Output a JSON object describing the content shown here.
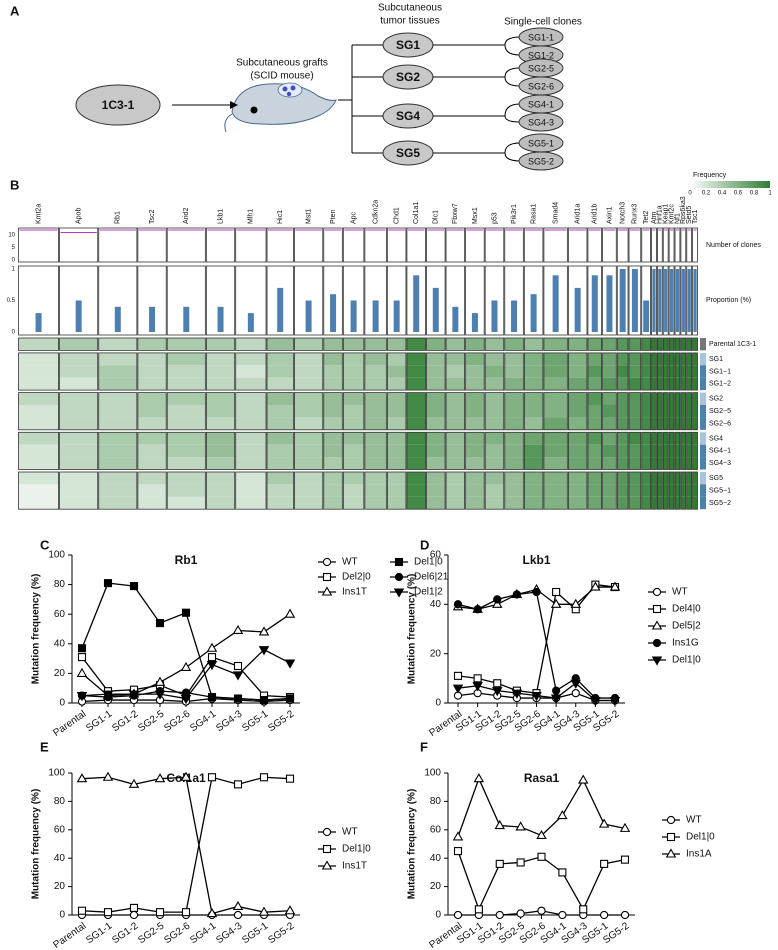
{
  "panel_labels": [
    "A",
    "B",
    "C",
    "D",
    "E",
    "F"
  ],
  "diagram": {
    "parent": "1C3-1",
    "graft_label": [
      "Subcutaneous grafts",
      "(SCID mouse)"
    ],
    "tumor_header": [
      "Subcutaneous",
      "tumor tissues"
    ],
    "clones_header": "Single-cell clones",
    "tumors": [
      {
        "label": "SG1",
        "clones": [
          "SG1-1",
          "SG1-2"
        ]
      },
      {
        "label": "SG2",
        "clones": [
          "SG2-5",
          "SG2-6"
        ]
      },
      {
        "label": "SG4",
        "clones": [
          "SG4-1",
          "SG4-3"
        ]
      },
      {
        "label": "SG5",
        "clones": [
          "SG5-1",
          "SG5-2"
        ]
      }
    ]
  },
  "heatmap": {
    "legend_title": "Frequency",
    "legend_ticks": [
      0,
      0.2,
      0.4,
      0.6,
      0.8,
      1
    ],
    "low_color": "#ffffff",
    "high_color": "#2e7d32",
    "clones_label": "Number of clones",
    "proportion_label": "Proportion (%)",
    "clones_ylim": [
      0,
      12
    ],
    "clones_yticks": [
      0,
      5,
      10
    ],
    "proportion_ylim": [
      0,
      1
    ],
    "proportion_yticks": [
      0,
      0.5,
      1
    ],
    "genes": [
      "Kmt2a",
      "Apob",
      "Rb1",
      "Tsc2",
      "Arid2",
      "Lkb1",
      "Mlh1",
      "Hic1",
      "Mst1",
      "Pten",
      "Apc",
      "Cdkn2a",
      "Chd1",
      "Col1a1",
      "Dlc1",
      "Fbxw7",
      "Msx1",
      "p53",
      "Pik3r1",
      "Rasa1",
      "Smad4",
      "Arid1a",
      "Arid1b",
      "Axin1",
      "Notch3",
      "Runx3",
      "Tet2",
      "Atm",
      "Hnf1a",
      "Keap1",
      "Kmt2c",
      "Nf1",
      "Rps6ka3",
      "Setd5",
      "Tsc1"
    ],
    "clones": [
      12,
      11,
      12,
      12,
      12,
      12,
      12,
      12,
      12,
      12,
      12,
      12,
      12,
      12,
      12,
      12,
      12,
      12,
      12,
      12,
      12,
      12,
      12,
      12,
      12,
      12,
      12,
      12,
      12,
      12,
      12,
      12,
      12,
      12,
      12
    ],
    "proportion": [
      0.3,
      0.5,
      0.4,
      0.4,
      0.4,
      0.4,
      0.3,
      0.7,
      0.5,
      0.6,
      0.5,
      0.5,
      0.5,
      0.9,
      0.7,
      0.4,
      0.3,
      0.5,
      0.5,
      0.6,
      0.9,
      0.7,
      0.9,
      0.9,
      1,
      1,
      0.5,
      1,
      1,
      1,
      1,
      1,
      1,
      1,
      1
    ],
    "row_labels": [
      "Parental 1C3-1",
      "SG1",
      "SG1−1",
      "SG1−2",
      "SG2",
      "SG2−5",
      "SG2−6",
      "SG4",
      "SG4−1",
      "SG4−3",
      "SG5",
      "SG5−1",
      "SG5−2"
    ],
    "values": [
      [
        0.3,
        0.4,
        0.3,
        0.4,
        0.4,
        0.4,
        0.3,
        0.5,
        0.4,
        0.5,
        0.5,
        0.5,
        0.5,
        0.9,
        0.6,
        0.5,
        0.6,
        0.5,
        0.6,
        0.5,
        0.6,
        0.6,
        0.7,
        0.7,
        0.8,
        0.8,
        0.9,
        1,
        1,
        1,
        1,
        1,
        1,
        1,
        1
      ],
      [
        0.2,
        0.3,
        0.3,
        0.3,
        0.4,
        0.3,
        0.3,
        0.4,
        0.3,
        0.5,
        0.4,
        0.5,
        0.4,
        0.9,
        0.5,
        0.5,
        0.6,
        0.5,
        0.5,
        0.6,
        0.7,
        0.6,
        0.7,
        0.7,
        0.8,
        0.8,
        0.9,
        1,
        1,
        1,
        1,
        1,
        1,
        1,
        1
      ],
      [
        0.2,
        0.3,
        0.4,
        0.3,
        0.3,
        0.3,
        0.2,
        0.4,
        0.3,
        0.4,
        0.4,
        0.4,
        0.5,
        0.9,
        0.5,
        0.4,
        0.5,
        0.6,
        0.5,
        0.6,
        0.7,
        0.6,
        0.8,
        0.7,
        0.9,
        0.8,
        0.9,
        1,
        1,
        1,
        1,
        1,
        1,
        1,
        1
      ],
      [
        0.2,
        0.2,
        0.4,
        0.3,
        0.3,
        0.3,
        0.3,
        0.3,
        0.3,
        0.4,
        0.4,
        0.4,
        0.4,
        0.9,
        0.5,
        0.5,
        0.5,
        0.5,
        0.6,
        0.6,
        0.6,
        0.7,
        0.7,
        0.8,
        0.8,
        0.9,
        0.9,
        1,
        1,
        1,
        1,
        1,
        1,
        1,
        1
      ],
      [
        0.3,
        0.3,
        0.3,
        0.4,
        0.4,
        0.4,
        0.3,
        0.5,
        0.4,
        0.5,
        0.5,
        0.5,
        0.5,
        0.9,
        0.6,
        0.5,
        0.6,
        0.5,
        0.6,
        0.6,
        0.6,
        0.7,
        0.8,
        0.7,
        0.8,
        0.8,
        0.9,
        1,
        1,
        1,
        1,
        1,
        1,
        1,
        1
      ],
      [
        0.2,
        0.3,
        0.3,
        0.4,
        0.3,
        0.4,
        0.3,
        0.4,
        0.4,
        0.5,
        0.4,
        0.5,
        0.5,
        0.9,
        0.6,
        0.5,
        0.6,
        0.5,
        0.6,
        0.6,
        0.6,
        0.7,
        0.7,
        0.8,
        0.8,
        0.8,
        0.9,
        1,
        1,
        1,
        1,
        1,
        1,
        1,
        1
      ],
      [
        0.2,
        0.3,
        0.3,
        0.3,
        0.3,
        0.3,
        0.3,
        0.4,
        0.3,
        0.4,
        0.4,
        0.5,
        0.4,
        0.9,
        0.5,
        0.5,
        0.5,
        0.5,
        0.6,
        0.5,
        0.7,
        0.6,
        0.7,
        0.7,
        0.8,
        0.8,
        0.9,
        1,
        1,
        1,
        1,
        1,
        1,
        1,
        1
      ],
      [
        0.3,
        0.3,
        0.4,
        0.4,
        0.4,
        0.5,
        0.3,
        0.5,
        0.4,
        0.5,
        0.5,
        0.5,
        0.5,
        0.9,
        0.6,
        0.5,
        0.6,
        0.6,
        0.6,
        0.7,
        0.7,
        0.7,
        0.8,
        0.7,
        0.8,
        0.9,
        0.9,
        1,
        1,
        1,
        1,
        1,
        1,
        1,
        1
      ],
      [
        0.2,
        0.3,
        0.4,
        0.3,
        0.4,
        0.5,
        0.3,
        0.4,
        0.4,
        0.5,
        0.4,
        0.5,
        0.5,
        0.9,
        0.6,
        0.5,
        0.6,
        0.5,
        0.6,
        0.8,
        0.7,
        0.7,
        0.7,
        0.8,
        0.8,
        0.8,
        0.9,
        1,
        1,
        1,
        1,
        1,
        1,
        1,
        1
      ],
      [
        0.2,
        0.3,
        0.4,
        0.3,
        0.3,
        0.4,
        0.3,
        0.4,
        0.4,
        0.4,
        0.4,
        0.5,
        0.5,
        0.9,
        0.5,
        0.5,
        0.5,
        0.5,
        0.6,
        0.8,
        0.6,
        0.7,
        0.7,
        0.7,
        0.8,
        0.8,
        0.9,
        1,
        1,
        1,
        1,
        1,
        1,
        1,
        1
      ],
      [
        0.2,
        0.2,
        0.3,
        0.3,
        0.3,
        0.3,
        0.2,
        0.4,
        0.3,
        0.4,
        0.4,
        0.4,
        0.4,
        0.9,
        0.5,
        0.4,
        0.5,
        0.5,
        0.5,
        0.6,
        0.6,
        0.6,
        0.7,
        0.7,
        0.8,
        0.8,
        0.9,
        1,
        1,
        1,
        1,
        1,
        1,
        1,
        1
      ],
      [
        0.1,
        0.2,
        0.3,
        0.2,
        0.3,
        0.3,
        0.2,
        0.3,
        0.3,
        0.4,
        0.3,
        0.4,
        0.4,
        0.9,
        0.5,
        0.4,
        0.5,
        0.4,
        0.5,
        0.6,
        0.6,
        0.6,
        0.7,
        0.7,
        0.8,
        0.8,
        0.9,
        1,
        1,
        1,
        1,
        1,
        1,
        1,
        1
      ],
      [
        0.1,
        0.2,
        0.3,
        0.2,
        0.2,
        0.3,
        0.2,
        0.3,
        0.3,
        0.4,
        0.3,
        0.4,
        0.4,
        0.9,
        0.5,
        0.4,
        0.5,
        0.4,
        0.5,
        0.6,
        0.6,
        0.6,
        0.7,
        0.7,
        0.8,
        0.8,
        0.9,
        1,
        1,
        1,
        1,
        1,
        1,
        1,
        1
      ]
    ]
  },
  "chart_data": [
    {
      "type": "line",
      "title": "Rb1",
      "y_label": "Mutation frequency (%)",
      "categories": [
        "Parental",
        "SG1-1",
        "SG1-2",
        "SG2-5",
        "SG2-6",
        "SG4-1",
        "SG4-3",
        "SG5-1",
        "SG5-2"
      ],
      "ylim": [
        0,
        100
      ],
      "yticks": [
        0,
        20,
        40,
        60,
        80,
        100
      ],
      "series": [
        {
          "name": "WT",
          "color": "#000000",
          "marker": "circle",
          "filled": false,
          "values": [
            1,
            2,
            2,
            2,
            1,
            3,
            2,
            1,
            2
          ]
        },
        {
          "name": "Del2|0",
          "color": "#000000",
          "marker": "square",
          "filled": false,
          "values": [
            31,
            8,
            9,
            12,
            5,
            31,
            25,
            5,
            4
          ]
        },
        {
          "name": "Ins1T",
          "color": "#000000",
          "marker": "triangle",
          "filled": false,
          "values": [
            20,
            5,
            6,
            14,
            24,
            37,
            49,
            48,
            60
          ]
        },
        {
          "name": "Del1|0",
          "color": "#000000",
          "marker": "square",
          "filled": true,
          "values": [
            37,
            81,
            79,
            54,
            61,
            4,
            3,
            2,
            3
          ]
        },
        {
          "name": "Del6|21",
          "color": "#000000",
          "marker": "circle",
          "filled": true,
          "values": [
            5,
            4,
            5,
            8,
            7,
            4,
            3,
            2,
            3
          ]
        },
        {
          "name": "Del1|2",
          "color": "#000000",
          "marker": "triangle-down",
          "filled": true,
          "values": [
            5,
            6,
            6,
            6,
            3,
            26,
            19,
            36,
            27
          ]
        }
      ]
    },
    {
      "type": "line",
      "title": "Lkb1",
      "y_label": "Mutation frequency (%)",
      "categories": [
        "Parental",
        "SG1-1",
        "SG1-2",
        "SG2-5",
        "SG2-6",
        "SG4-1",
        "SG4-3",
        "SG5-1",
        "SG5-2"
      ],
      "ylim": [
        0,
        60
      ],
      "yticks": [
        0,
        20,
        40,
        60
      ],
      "series": [
        {
          "name": "WT",
          "color": "#000000",
          "marker": "circle",
          "filled": false,
          "values": [
            3,
            4,
            3,
            2,
            2,
            2,
            4,
            1,
            1
          ]
        },
        {
          "name": "Del4|0",
          "color": "#000000",
          "marker": "square",
          "filled": false,
          "values": [
            11,
            10,
            8,
            5,
            4,
            45,
            38,
            48,
            47
          ]
        },
        {
          "name": "Del5|2",
          "color": "#000000",
          "marker": "triangle",
          "filled": false,
          "values": [
            39,
            38,
            40,
            44,
            46,
            40,
            40,
            47,
            47
          ]
        },
        {
          "name": "Ins1G",
          "color": "#000000",
          "marker": "circle",
          "filled": true,
          "values": [
            40,
            38,
            42,
            44,
            45,
            5,
            10,
            2,
            2
          ]
        },
        {
          "name": "Del1|0",
          "color": "#000000",
          "marker": "triangle-down",
          "filled": true,
          "values": [
            6,
            7,
            5,
            4,
            3,
            2,
            8,
            1,
            1
          ]
        }
      ]
    },
    {
      "type": "line",
      "title": "Col1a1",
      "y_label": "Mutation frequency (%)",
      "categories": [
        "Parental",
        "SG1-1",
        "SG1-2",
        "SG2-5",
        "SG2-6",
        "SG4-1",
        "SG4-3",
        "SG5-1",
        "SG5-2"
      ],
      "ylim": [
        0,
        100
      ],
      "yticks": [
        0,
        20,
        40,
        60,
        80,
        100
      ],
      "series": [
        {
          "name": "WT",
          "color": "#000000",
          "marker": "circle",
          "filled": false,
          "values": [
            0,
            0,
            0,
            0,
            0,
            0,
            0,
            0,
            0
          ]
        },
        {
          "name": "Del1|0",
          "color": "#000000",
          "marker": "square",
          "filled": false,
          "values": [
            3,
            2,
            5,
            2,
            2,
            97,
            92,
            97,
            96
          ]
        },
        {
          "name": "Ins1T",
          "color": "#000000",
          "marker": "triangle",
          "filled": false,
          "values": [
            96,
            97,
            92,
            96,
            97,
            1,
            6,
            2,
            3
          ]
        }
      ]
    },
    {
      "type": "line",
      "title": "Rasa1",
      "y_label": "Mutation frequency (%)",
      "categories": [
        "Parental",
        "SG1-1",
        "SG1-2",
        "SG2-5",
        "SG2-6",
        "SG4-1",
        "SG4-3",
        "SG5-1",
        "SG5-2"
      ],
      "ylim": [
        0,
        100
      ],
      "yticks": [
        0,
        20,
        40,
        60,
        80,
        100
      ],
      "series": [
        {
          "name": "WT",
          "color": "#000000",
          "marker": "circle",
          "filled": false,
          "values": [
            0,
            0,
            0,
            1,
            3,
            0,
            0,
            0,
            0
          ]
        },
        {
          "name": "Del1|0",
          "color": "#000000",
          "marker": "square",
          "filled": false,
          "values": [
            45,
            4,
            36,
            37,
            41,
            30,
            4,
            36,
            39
          ]
        },
        {
          "name": "Ins1A",
          "color": "#000000",
          "marker": "triangle",
          "filled": false,
          "values": [
            55,
            96,
            63,
            62,
            56,
            70,
            95,
            64,
            61
          ]
        }
      ]
    }
  ]
}
